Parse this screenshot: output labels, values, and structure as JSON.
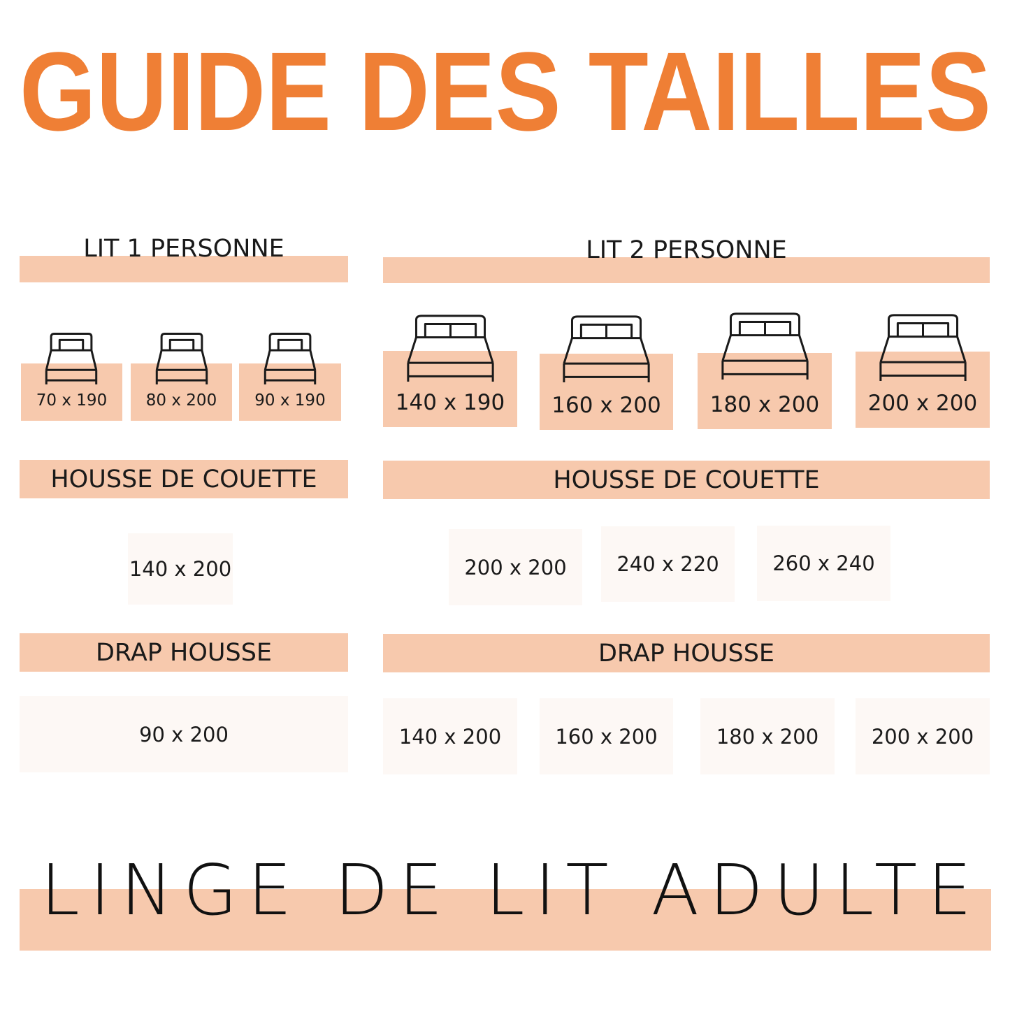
{
  "title": "GUIDE DES TAILLES",
  "colors": {
    "accent": "#EF7F35",
    "band": "#F7C9AD",
    "box": "#FDF8F5",
    "text": "#1a1a1a"
  },
  "single": {
    "header": "LIT 1 PERSONNE",
    "beds": [
      {
        "size": "70 x 190",
        "icon": "single-bed-icon"
      },
      {
        "size": "80 x 200",
        "icon": "single-bed-icon"
      },
      {
        "size": "90 x 190",
        "icon": "single-bed-icon"
      }
    ],
    "duvet_header": "HOUSSE DE COUETTE",
    "duvet_sizes": [
      "140 x 200"
    ],
    "sheet_header": "DRAP HOUSSE",
    "sheet_sizes": [
      "90 x 200"
    ]
  },
  "double": {
    "header": "LIT 2 PERSONNE",
    "beds": [
      {
        "size": "140 x 190",
        "icon": "double-bed-icon"
      },
      {
        "size": "160 x 200",
        "icon": "double-bed-icon"
      },
      {
        "size": "180 x 200",
        "icon": "double-bed-icon"
      },
      {
        "size": "200 x 200",
        "icon": "double-bed-icon"
      }
    ],
    "duvet_header": "HOUSSE DE COUETTE",
    "duvet_sizes": [
      "200 x 200",
      "240 x 220",
      "260 x 240"
    ],
    "sheet_header": "DRAP HOUSSE",
    "sheet_sizes": [
      "140 x 200",
      "160 x 200",
      "180 x 200",
      "200 x 200"
    ]
  },
  "footer": "LINGE DE LIT ADULTE"
}
